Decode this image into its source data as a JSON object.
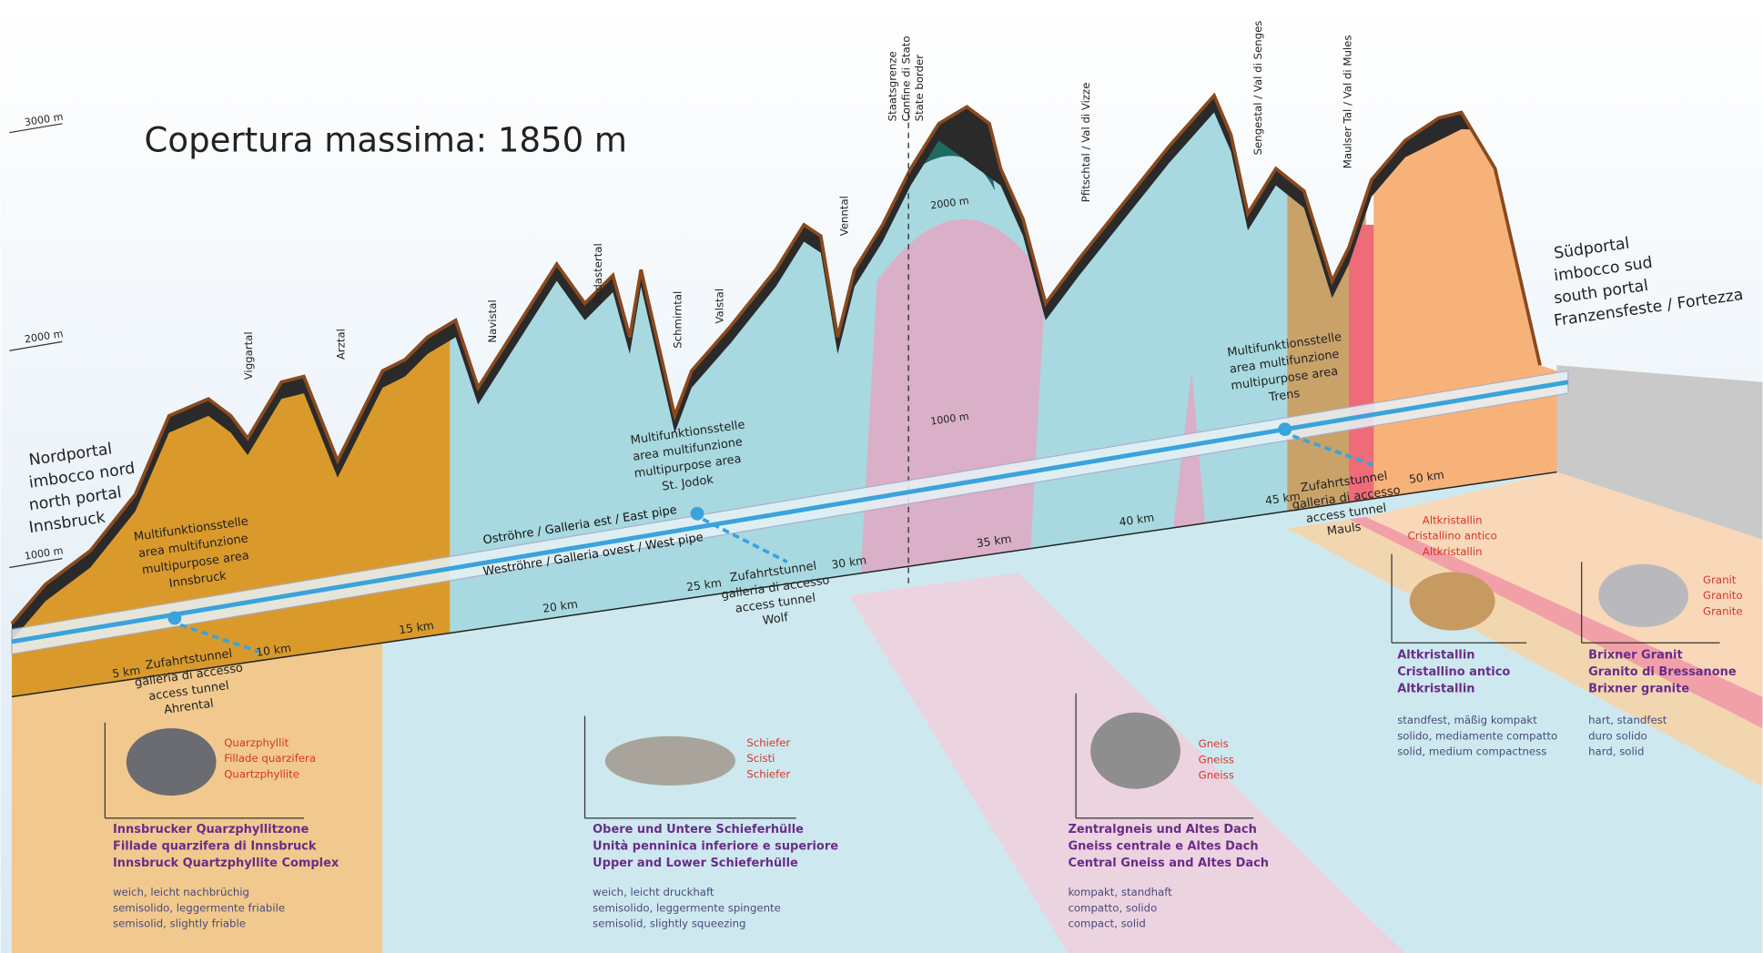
{
  "title": "Copertura massima: 1850 m",
  "altitude_labels": [
    "3000 m",
    "2000 m",
    "1000 m"
  ],
  "inner_altitude_labels": [
    "2000 m",
    "1000 m"
  ],
  "portals": {
    "north": [
      "Nordportal",
      "imbocco nord",
      "north portal",
      "Innsbruck"
    ],
    "south": [
      "Südportal",
      "imbocco sud",
      "south portal",
      "Franzensfeste / Fortezza"
    ]
  },
  "valleys": [
    "Viggartal",
    "Arztal",
    "Navistal",
    "Padastertal",
    "Schmirntal",
    "Valstal",
    "Venntal",
    "Pfitschtal / Val di Vizze",
    "Sengestal / Val di Senges",
    "Maulser Tal / Val di Mules"
  ],
  "border": [
    "Staatsgrenze",
    "Confine di Stato",
    "State border"
  ],
  "multipurpose_areas": [
    [
      "Multifunktionsstelle",
      "area multifunzione",
      "multipurpose area",
      "Innsbruck"
    ],
    [
      "Multifunktionsstelle",
      "area multifunzione",
      "multipurpose area",
      "St. Jodok"
    ],
    [
      "Multifunktionsstelle",
      "area multifunzione",
      "multipurpose area",
      "Trens"
    ]
  ],
  "access_tunnels": [
    [
      "Zufahrtstunnel",
      "galleria di accesso",
      "access tunnel",
      "Ahrental"
    ],
    [
      "Zufahrtstunnel",
      "galleria di accesso",
      "access tunnel",
      "Wolf"
    ],
    [
      "Zufahrtstunnel",
      "galleria di accesso",
      "access tunnel",
      "Mauls"
    ]
  ],
  "pipes": [
    "Oströhre / Galleria est / East pipe",
    "Weströhre / Galleria ovest / West pipe"
  ],
  "km_marks": [
    "5 km",
    "10 km",
    "15 km",
    "20 km",
    "25 km",
    "30 km",
    "35 km",
    "40 km",
    "45 km",
    "50 km"
  ],
  "rock_zones": [
    {
      "rock": [
        "Quarzphyllit",
        "Fillade quarzifera",
        "Quartzphyllite"
      ],
      "formation": [
        "Innsbrucker Quarzphyllitzone",
        "Fillade quarzifera di Innsbruck",
        "Innsbruck Quartzphyllite Complex"
      ],
      "properties": [
        "weich, leicht nachbrüchig",
        "semisolido, leggermente friabile",
        "semisolid, slightly friable"
      ]
    },
    {
      "rock": [
        "Schiefer",
        "Scisti",
        "Schiefer"
      ],
      "formation": [
        "Obere und Untere Schieferhülle",
        "Unità penninica inferiore e superiore",
        "Upper and Lower Schieferhülle"
      ],
      "properties": [
        "weich, leicht druckhaft",
        "semisolido, leggermente spingente",
        "semisolid, slightly squeezing"
      ]
    },
    {
      "rock": [
        "Gneis",
        "Gneiss",
        "Gneiss"
      ],
      "formation": [
        "Zentralgneis und Altes Dach",
        "Gneiss centrale e Altes Dach",
        "Central Gneiss and Altes Dach"
      ],
      "properties": [
        "kompakt, standhaft",
        "compatto, solido",
        "compact, solid"
      ]
    },
    {
      "rock": [
        "Altkristallin",
        "Cristallino antico",
        "Altkristallin"
      ],
      "formation": [
        "Altkristallin",
        "Cristallino antico",
        "Altkristallin"
      ],
      "properties": [
        "standfest, mäßig kompakt",
        "solido, mediamente compatto",
        "solid, medium compactness"
      ]
    },
    {
      "rock": [
        "Granit",
        "Granito",
        "Granite"
      ],
      "formation": [
        "Brixner Granit",
        "Granito di Bressanone",
        "Brixner granite"
      ],
      "properties": [
        "hart, standfest",
        "duro solido",
        "hard, solid"
      ]
    }
  ]
}
